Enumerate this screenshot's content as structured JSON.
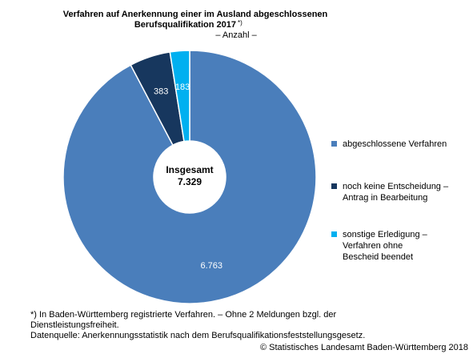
{
  "chart_data": {
    "type": "pie",
    "donut": true,
    "title": [
      "Verfahren auf Anerkennung einer im Ausland abgeschlossenen",
      "Berufsqualifikation 2017"
    ],
    "title_note": "*)",
    "subtitle": "– Anzahl –",
    "categories": [
      "abgeschlossene Verfahren",
      "noch keine Entscheidung – Antrag in Bearbeitung",
      "sonstige Erledigung – Verfahren ohne Bescheid beendet"
    ],
    "values": [
      6763,
      383,
      183
    ],
    "value_labels": [
      "6.763",
      "383",
      "183"
    ],
    "colors": [
      "#4a7ebb",
      "#17375e",
      "#00b0f0"
    ],
    "center_label": "Insgesamt",
    "total": {
      "value": 7329,
      "label": "7.329"
    },
    "legend": "right",
    "notes": [
      "*) In Baden-Württemberg registrierte Verfahren. – Ohne 2 Meldungen bzgl. der",
      "Dienstleistungsfreiheit.",
      "Datenquelle: Anerkennungsstatistik nach dem Berufsqualifikationsfeststellungsgesetz."
    ],
    "copyright": "© Statistisches Landesamt Baden-Württemberg 2018"
  }
}
